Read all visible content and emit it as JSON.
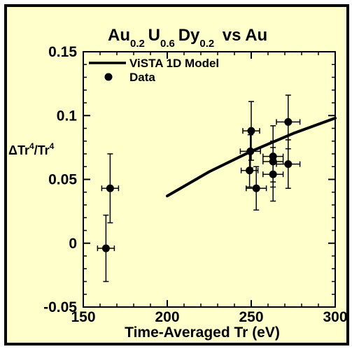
{
  "chart_data": {
    "type": "scatter",
    "title": {
      "parts": [
        {
          "text": "Au",
          "sub": "0.2"
        },
        {
          "text": "U",
          "sub": "0.6"
        },
        {
          "text": "Dy",
          "sub": "0.2"
        },
        {
          "text": " vs Au",
          "sub": ""
        }
      ]
    },
    "xlabel": "Time-Averaged Tr (eV)",
    "ylabel": {
      "main": "ΔTr",
      "sup": "4",
      "main2": "/Tr",
      "sup2": "4"
    },
    "xlim": [
      150,
      300
    ],
    "ylim": [
      -0.05,
      0.15
    ],
    "x_ticks": [
      150,
      200,
      250,
      300
    ],
    "x_tick_labels": [
      "150",
      "200",
      "250",
      "300"
    ],
    "y_ticks": [
      -0.05,
      0,
      0.05,
      0.1,
      0.15
    ],
    "y_tick_labels": [
      "-0.05",
      "0",
      "0.05",
      "0.1",
      "0.15"
    ],
    "legend_position": "top-left",
    "legend": [
      {
        "label": "ViSTA 1D Model",
        "marker": "line"
      },
      {
        "label": "Data",
        "marker": "dot"
      }
    ],
    "grid": false,
    "background_color": "#ffffcc",
    "series": [
      {
        "name": "ViSTA 1D Model",
        "kind": "line",
        "x": [
          200,
          225,
          250,
          275,
          300
        ],
        "y": [
          0.037,
          0.056,
          0.072,
          0.086,
          0.098
        ]
      },
      {
        "name": "Data",
        "kind": "points",
        "points": [
          {
            "x": 163.5,
            "y": -0.004,
            "xerr": 5,
            "yerr": 0.026
          },
          {
            "x": 166,
            "y": 0.043,
            "xerr": 5,
            "yerr": 0.027
          },
          {
            "x": 249,
            "y": 0.057,
            "xerr": 5,
            "yerr": 0.013
          },
          {
            "x": 249.5,
            "y": 0.072,
            "xerr": 6,
            "yerr": 0.013
          },
          {
            "x": 250,
            "y": 0.088,
            "xerr": 5,
            "yerr": 0.023
          },
          {
            "x": 253,
            "y": 0.043,
            "xerr": 6,
            "yerr": 0.017
          },
          {
            "x": 263,
            "y": 0.068,
            "xerr": 6,
            "yerr": 0.024
          },
          {
            "x": 263,
            "y": 0.064,
            "xerr": 6,
            "yerr": 0.016
          },
          {
            "x": 263,
            "y": 0.054,
            "xerr": 6,
            "yerr": 0.021
          },
          {
            "x": 272,
            "y": 0.095,
            "xerr": 7,
            "yerr": 0.021
          },
          {
            "x": 272,
            "y": 0.062,
            "xerr": 7,
            "yerr": 0.019
          }
        ]
      }
    ]
  }
}
